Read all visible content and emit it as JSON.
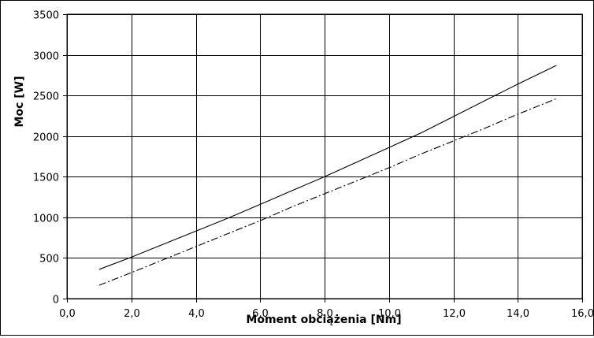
{
  "chart_data": {
    "type": "line",
    "title": "",
    "xlabel": "Moment obciążenia [Nm]",
    "ylabel": "Moc [W]",
    "xlim": [
      0,
      16
    ],
    "ylim": [
      0,
      3500
    ],
    "x_ticks": [
      0,
      2,
      4,
      6,
      8,
      10,
      12,
      14,
      16
    ],
    "x_tick_labels": [
      "0,0",
      "2,0",
      "4,0",
      "6,0",
      "8,0",
      "10,0",
      "12,0",
      "14,0",
      "16,0"
    ],
    "y_ticks": [
      0,
      500,
      1000,
      1500,
      2000,
      2500,
      3000,
      3500
    ],
    "y_tick_labels": [
      "0",
      "500",
      "1000",
      "1500",
      "2000",
      "2500",
      "3000",
      "3500"
    ],
    "grid": true,
    "legend": "none",
    "series": [
      {
        "line_style": "solid",
        "color": "#000000",
        "x": [
          1.0,
          2.0,
          3.0,
          4.0,
          5.0,
          6.0,
          7.0,
          8.0,
          9.0,
          10.0,
          11.0,
          12.0,
          13.0,
          14.0,
          15.2
        ],
        "values": [
          360,
          510,
          670,
          830,
          990,
          1160,
          1330,
          1500,
          1680,
          1860,
          2040,
          2240,
          2440,
          2640,
          2870
        ]
      },
      {
        "line_style": "dashed",
        "color": "#000000",
        "x": [
          1.0,
          2.0,
          3.0,
          4.0,
          5.0,
          6.0,
          7.0,
          8.0,
          9.0,
          10.0,
          11.0,
          12.0,
          13.0,
          14.0,
          15.2
        ],
        "values": [
          165,
          320,
          480,
          640,
          800,
          960,
          1130,
          1290,
          1450,
          1610,
          1780,
          1940,
          2100,
          2270,
          2460
        ]
      }
    ]
  }
}
